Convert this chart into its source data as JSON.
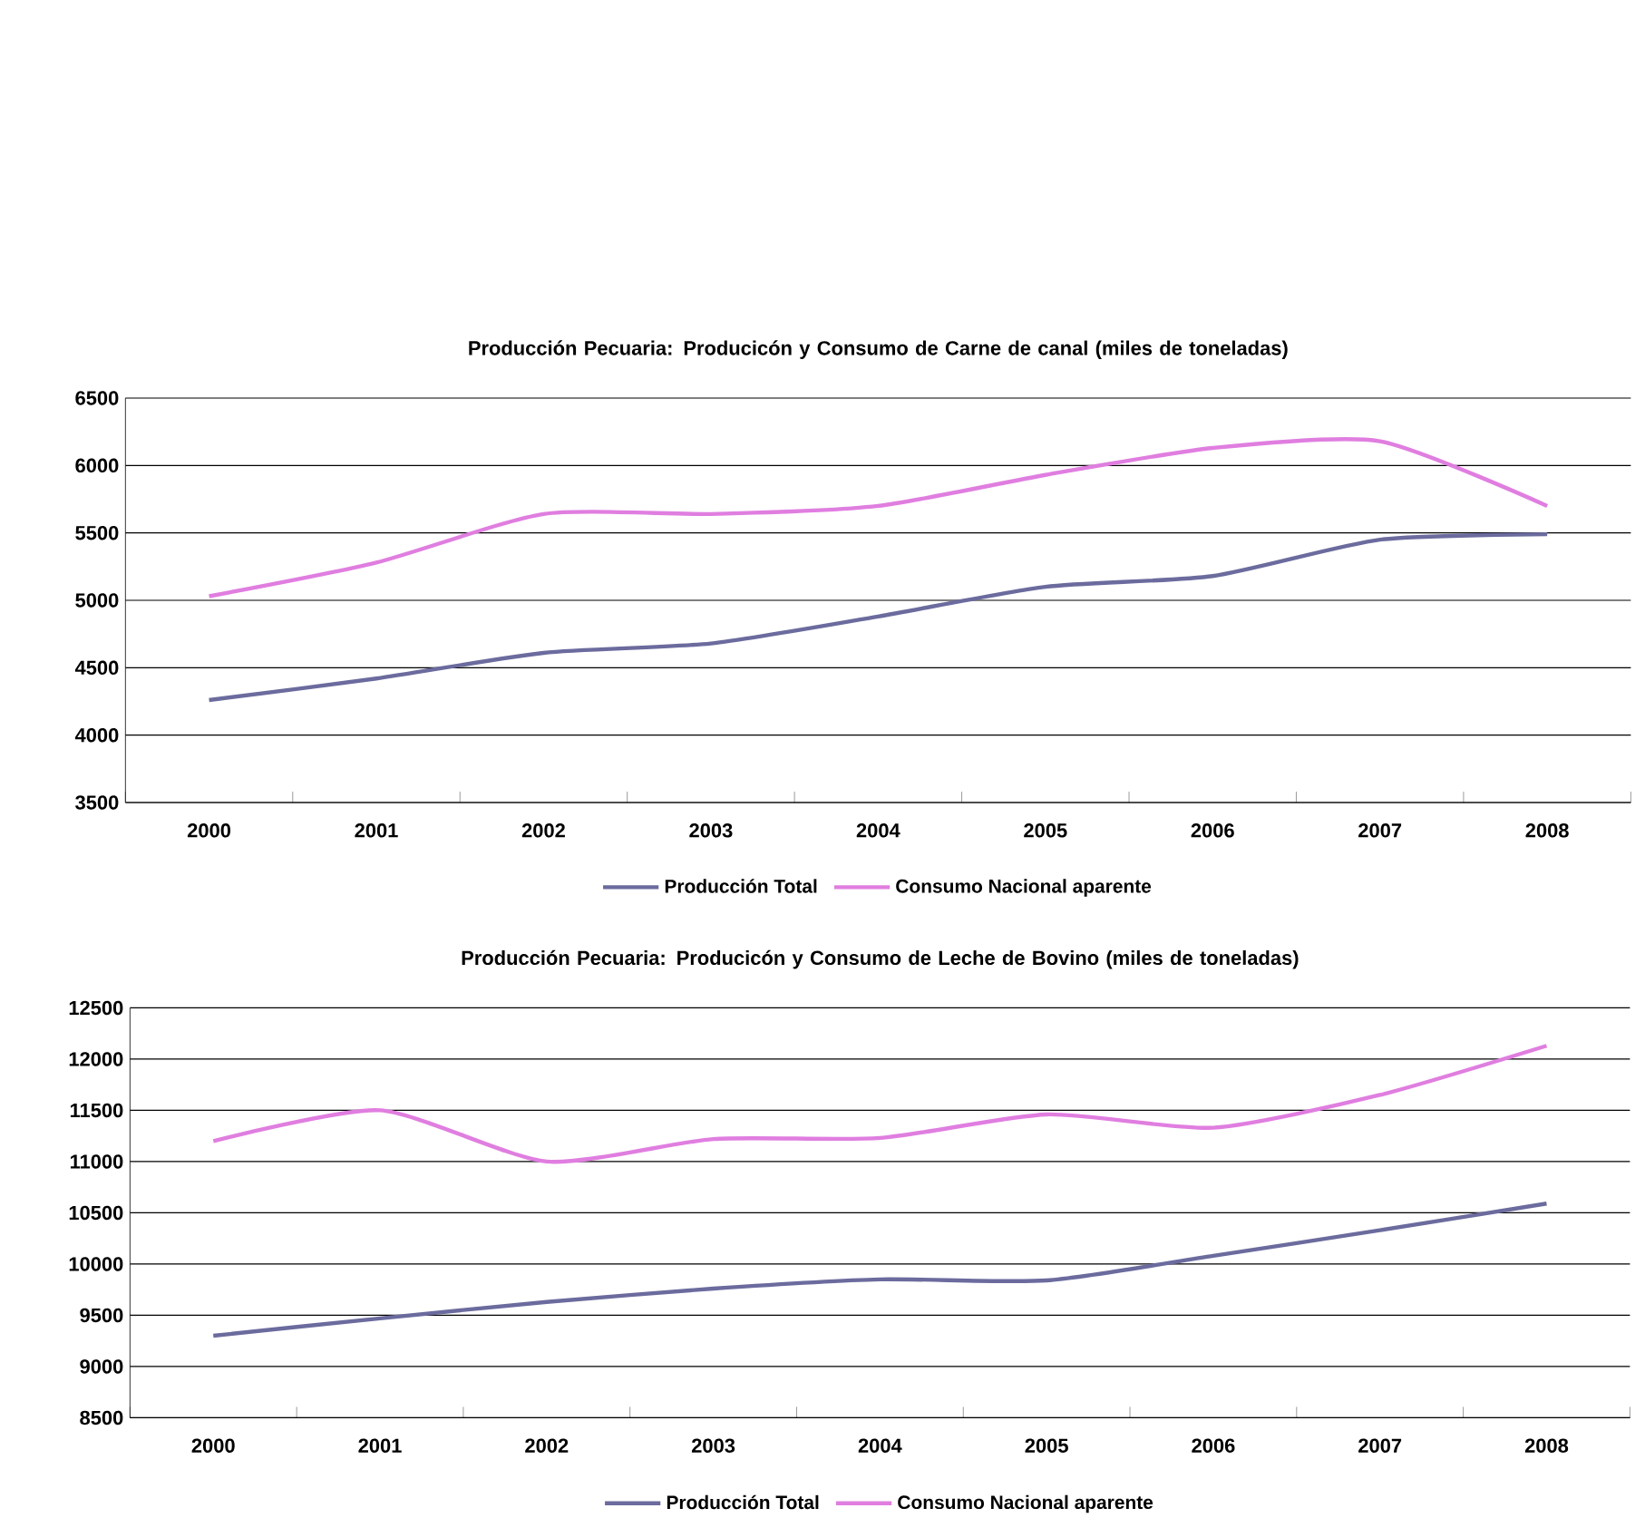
{
  "chart_data": [
    {
      "type": "line",
      "title": "Producción Pecuaria: Producicón y Consumo de Carne de canal (miles de toneladas)",
      "categories": [
        "2000",
        "2001",
        "2002",
        "2003",
        "2004",
        "2005",
        "2006",
        "2007",
        "2008"
      ],
      "series": [
        {
          "name": "Producción Total",
          "color": "#6b6b9e",
          "values": [
            4260,
            4420,
            4610,
            4680,
            4880,
            5100,
            5180,
            5450,
            5490
          ]
        },
        {
          "name": "Consumo Nacional aparente",
          "color": "#e07ee0",
          "values": [
            5030,
            5280,
            5640,
            5640,
            5700,
            5930,
            6130,
            6180,
            5700
          ]
        }
      ],
      "ylim": [
        3500,
        6500
      ],
      "yticks": [
        3500,
        4000,
        4500,
        5000,
        5500,
        6000,
        6500
      ],
      "grid": "y",
      "legend": "bottom"
    },
    {
      "type": "line",
      "title": "Producción Pecuaria: Producicón y Consumo de Leche de Bovino (miles de toneladas)",
      "categories": [
        "2000",
        "2001",
        "2002",
        "2003",
        "2004",
        "2005",
        "2006",
        "2007",
        "2008"
      ],
      "series": [
        {
          "name": "Producción Total",
          "color": "#6b6b9e",
          "values": [
            9300,
            9470,
            9630,
            9760,
            9850,
            9840,
            10080,
            10330,
            10590
          ]
        },
        {
          "name": "Consumo Nacional aparente",
          "color": "#e07ee0",
          "values": [
            11200,
            11500,
            11000,
            11220,
            11230,
            11460,
            11330,
            11650,
            12130
          ]
        }
      ],
      "ylim": [
        8500,
        12500
      ],
      "yticks": [
        8500,
        9000,
        9500,
        10000,
        10500,
        11000,
        11500,
        12000,
        12500
      ],
      "grid": "y",
      "legend": "bottom"
    }
  ]
}
